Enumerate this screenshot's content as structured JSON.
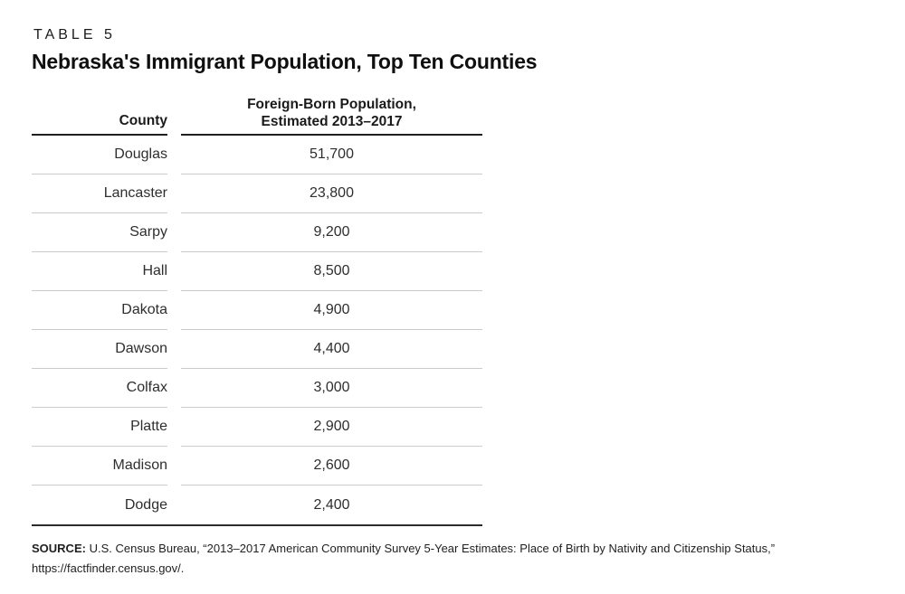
{
  "table_label": "TABLE 5",
  "title": "Nebraska's Immigrant Population, Top Ten Counties",
  "columns": {
    "county": "County",
    "population_line1": "Foreign-Born Population,",
    "population_line2": "Estimated 2013–2017"
  },
  "rows": [
    {
      "county": "Douglas",
      "population": "51,700"
    },
    {
      "county": "Lancaster",
      "population": "23,800"
    },
    {
      "county": "Sarpy",
      "population": "9,200"
    },
    {
      "county": "Hall",
      "population": "8,500"
    },
    {
      "county": "Dakota",
      "population": "4,900"
    },
    {
      "county": "Dawson",
      "population": "4,400"
    },
    {
      "county": "Colfax",
      "population": "3,000"
    },
    {
      "county": "Platte",
      "population": "2,900"
    },
    {
      "county": "Madison",
      "population": "2,600"
    },
    {
      "county": "Dodge",
      "population": "2,400"
    }
  ],
  "source": {
    "label": "SOURCE:",
    "text": "U.S. Census Bureau, “2013–2017 American Community Survey 5-Year Estimates: Place of Birth by Nativity and Citizenship Status,” https://factfinder.census.gov/."
  },
  "colors": {
    "text": "#231f20",
    "rule_light": "#cbcbcb",
    "rule_dark": "#2b2b2b"
  },
  "chart_data": {
    "type": "table",
    "title": "Nebraska's Immigrant Population, Top Ten Counties",
    "columns": [
      "County",
      "Foreign-Born Population, Estimated 2013–2017"
    ],
    "rows": [
      [
        "Douglas",
        51700
      ],
      [
        "Lancaster",
        23800
      ],
      [
        "Sarpy",
        9200
      ],
      [
        "Hall",
        8500
      ],
      [
        "Dakota",
        4900
      ],
      [
        "Dawson",
        4400
      ],
      [
        "Colfax",
        3000
      ],
      [
        "Platte",
        2900
      ],
      [
        "Madison",
        2600
      ],
      [
        "Dodge",
        2400
      ]
    ]
  }
}
